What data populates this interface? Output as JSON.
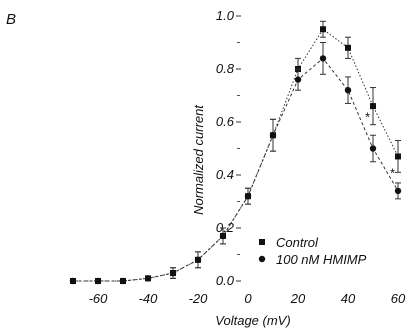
{
  "chart_data": {
    "type": "line",
    "panel_label": "B",
    "xlabel": "Voltage (mV)",
    "ylabel": "Normalized current",
    "xlim": [
      -75,
      62
    ],
    "ylim": [
      0.0,
      1.02
    ],
    "x_ticks": [
      -60,
      -40,
      -20,
      0,
      20,
      40,
      60
    ],
    "y_ticks": [
      0.0,
      0.2,
      0.4,
      0.6,
      0.8,
      1.0
    ],
    "x_tick_labels": [
      "-60",
      "-40",
      "-20",
      "0",
      "20",
      "40",
      "60"
    ],
    "y_tick_labels": [
      "0.0",
      "0.2",
      "0.4",
      "0.6",
      "0.8",
      "1.0"
    ],
    "grid": false,
    "legend_position": "lower-right",
    "series": [
      {
        "name": "Control",
        "marker": "square",
        "line_style": "dotted",
        "x": [
          -70,
          -60,
          -50,
          -40,
          -30,
          -20,
          -10,
          0,
          10,
          20,
          30,
          40,
          50,
          60
        ],
        "y": [
          0.0,
          0.0,
          0.0,
          0.01,
          0.03,
          0.08,
          0.17,
          0.32,
          0.55,
          0.8,
          0.95,
          0.88,
          0.66,
          0.47
        ],
        "err": [
          0.01,
          0.01,
          0.01,
          0.01,
          0.02,
          0.03,
          0.03,
          0.03,
          0.06,
          0.04,
          0.03,
          0.04,
          0.07,
          0.06
        ]
      },
      {
        "name": "100 nM HMIMP",
        "marker": "circle",
        "line_style": "dashed",
        "x": [
          -70,
          -60,
          -50,
          -40,
          -30,
          -20,
          -10,
          0,
          10,
          20,
          30,
          40,
          50,
          60
        ],
        "y": [
          0.0,
          0.0,
          0.0,
          0.01,
          0.03,
          0.08,
          0.17,
          0.32,
          0.55,
          0.76,
          0.84,
          0.72,
          0.5,
          0.34
        ],
        "err": [
          0.01,
          0.01,
          0.01,
          0.01,
          0.02,
          0.03,
          0.03,
          0.03,
          0.06,
          0.04,
          0.06,
          0.05,
          0.05,
          0.03
        ]
      }
    ],
    "annotations": [
      {
        "text": "*",
        "x": 50,
        "y": 0.62
      },
      {
        "text": "*",
        "x": 60,
        "y": 0.41
      },
      {
        "text": "*",
        "x": 70,
        "y": 0.26
      }
    ]
  }
}
